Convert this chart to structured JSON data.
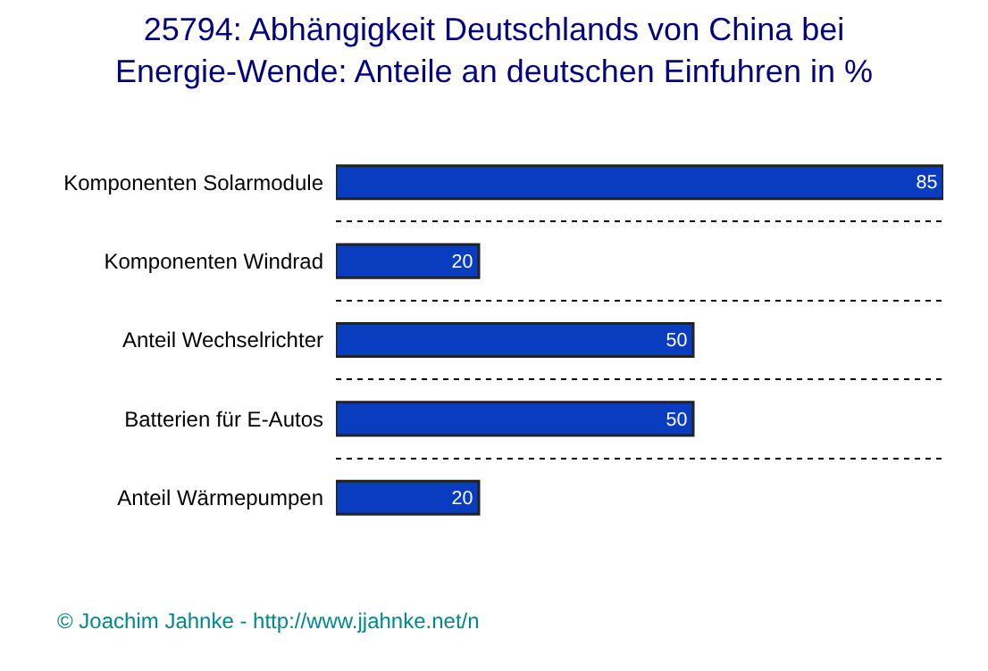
{
  "chart_data": {
    "type": "bar",
    "orientation": "horizontal",
    "title": "25794: Abhängigkeit Deutschlands von China bei Energie-Wende: Anteile an deutschen Einfuhren in %",
    "categories": [
      "Komponenten Solarmodule",
      "Komponenten Windrad",
      "Anteil Wechselrichter",
      "Batterien für E-Autos",
      "Anteil Wärmepumpen"
    ],
    "values": [
      85,
      20,
      50,
      50,
      20
    ],
    "color": "#0a3cc0",
    "xlim": [
      0,
      85
    ],
    "data_labels": true,
    "grid": "y",
    "tick_labels": "y",
    "annotations": [
      "© Joachim Jahnke - http://www.jjahnke.net/n"
    ]
  }
}
